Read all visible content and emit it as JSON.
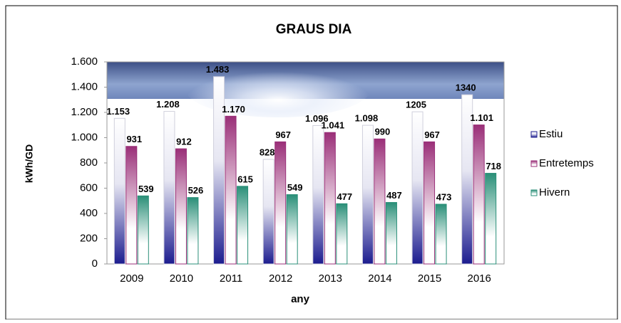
{
  "chart_data": {
    "type": "bar",
    "title": "GRAUS DIA",
    "x_label": "any",
    "y_label": "kWh/GD",
    "categories": [
      "2009",
      "2010",
      "2011",
      "2012",
      "2013",
      "2014",
      "2015",
      "2016"
    ],
    "series": [
      {
        "name": "Estiu",
        "color": "#1c1c8f",
        "values": [
          1153,
          1208,
          1483,
          828,
          1096,
          1098,
          1205,
          1340
        ],
        "value_labels": [
          "1.153",
          "1.208",
          "1.483",
          "828",
          "1.096",
          "1.098",
          "1205",
          "1340"
        ]
      },
      {
        "name": "Entretemps",
        "color": "#9a2f78",
        "values": [
          931,
          912,
          1170,
          967,
          1041,
          990,
          967,
          1101
        ],
        "value_labels": [
          "931",
          "912",
          "1.170",
          "967",
          "1.041",
          "990",
          "967",
          "1.101"
        ]
      },
      {
        "name": "Hivern",
        "color": "#2a8f78",
        "values": [
          539,
          526,
          615,
          549,
          477,
          487,
          473,
          718
        ]
      }
    ],
    "ylim": [
      0,
      1600
    ],
    "yticks": [
      0,
      200,
      400,
      600,
      800,
      {
        "value": 1000,
        "label": "1.000"
      },
      {
        "value": 1200,
        "label": "1.200"
      },
      {
        "value": 1400,
        "label": "1.400"
      },
      {
        "value": 1600,
        "label": "1.600"
      }
    ],
    "grid": false,
    "legend": "right"
  }
}
